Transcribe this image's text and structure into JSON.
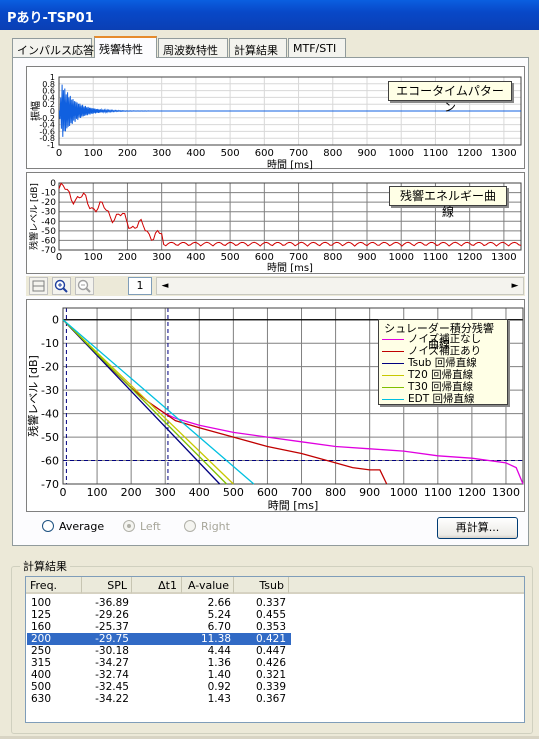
{
  "window": {
    "title": "Pあり-TSP01"
  },
  "tabs": [
    {
      "label": "インパルス応答",
      "active": false
    },
    {
      "label": "残響特性",
      "active": true
    },
    {
      "label": "周波数特性",
      "active": false
    },
    {
      "label": "計算結果",
      "active": false
    },
    {
      "label": "MTF/STI",
      "active": false
    }
  ],
  "echo_chart": {
    "label": "エコータイムパターン",
    "ylabel": "振幅",
    "xlabel": "時間 [ms]",
    "yticks": [
      "1",
      "0.8",
      "0.6",
      "0.4",
      "0.2",
      "0",
      "-0.2",
      "-0.4",
      "-0.6",
      "-0.8",
      "-1"
    ],
    "xticks": [
      "0",
      "100",
      "200",
      "300",
      "400",
      "500",
      "600",
      "700",
      "800",
      "900",
      "1000",
      "1100",
      "1200",
      "1300"
    ]
  },
  "energy_chart": {
    "label": "残響エネルギー曲線",
    "ylabel": "残響レベル [dB]",
    "xlabel": "時間 [ms]",
    "yticks": [
      "0",
      "-10",
      "-20",
      "-30",
      "-40",
      "-50",
      "-60",
      "-70"
    ],
    "xticks": [
      "0",
      "100",
      "200",
      "300",
      "400",
      "500",
      "600",
      "700",
      "800",
      "900",
      "1000",
      "1100",
      "1200",
      "1300"
    ]
  },
  "toolbar": {
    "page": "1",
    "left_arrow": "◄",
    "right_arrow": "►"
  },
  "chart_data": {
    "type": "line",
    "ylabel": "残響レベル [dB]",
    "xlabel": "時間 [ms]",
    "xlim": [
      0,
      1350
    ],
    "ylim": [
      -70,
      5
    ],
    "xticks": [
      0,
      100,
      200,
      300,
      400,
      500,
      600,
      700,
      800,
      900,
      1000,
      1100,
      1200,
      1300
    ],
    "yticks": [
      0,
      -10,
      -20,
      -30,
      -40,
      -50,
      -60,
      -70
    ],
    "grid": true,
    "legend_title": "シュレーダー積分残響曲線",
    "legend_position": "top-right",
    "reference_lines": {
      "hline_db": -60,
      "vline_ms": [
        10,
        308
      ]
    },
    "series": [
      {
        "name": "ノイズ補正なし",
        "color": "#E000E0",
        "x": [
          0,
          20,
          60,
          100,
          150,
          200,
          250,
          300,
          330,
          400,
          500,
          600,
          700,
          800,
          900,
          1000,
          1100,
          1200,
          1300,
          1330,
          1350
        ],
        "y": [
          0,
          -3,
          -9,
          -15,
          -22,
          -29,
          -35,
          -40,
          -42,
          -45,
          -48,
          -50,
          -52,
          -54,
          -55,
          -56,
          -58,
          -59,
          -61,
          -63,
          -70
        ]
      },
      {
        "name": "ノイズ補正あり",
        "color": "#C00000",
        "x": [
          0,
          20,
          60,
          100,
          150,
          200,
          250,
          300,
          330,
          400,
          500,
          600,
          700,
          800,
          850,
          900,
          930,
          950
        ],
        "y": [
          0,
          -3,
          -9,
          -15,
          -22,
          -29,
          -35,
          -40,
          -43,
          -46,
          -50,
          -54,
          -57,
          -61,
          -63,
          -64,
          -64,
          -70
        ]
      },
      {
        "name": "Tsub 回帰直線",
        "color": "#000080",
        "x": [
          0,
          460
        ],
        "y": [
          0,
          -70
        ]
      },
      {
        "name": "T20 回帰直線",
        "color": "#C8C800",
        "x": [
          0,
          500
        ],
        "y": [
          0,
          -70
        ]
      },
      {
        "name": "T30 回帰直線",
        "color": "#80C000",
        "x": [
          0,
          480
        ],
        "y": [
          0,
          -70
        ]
      },
      {
        "name": "EDT 回帰直線",
        "color": "#00C0E0",
        "x": [
          0,
          560
        ],
        "y": [
          0,
          -70
        ]
      }
    ]
  },
  "radios": [
    {
      "label": "Average",
      "selected": false,
      "enabled": true
    },
    {
      "label": "Left",
      "selected": true,
      "enabled": false
    },
    {
      "label": "Right",
      "selected": false,
      "enabled": false
    }
  ],
  "recalc_button": "再計算...",
  "results": {
    "group_label": "計算結果",
    "columns": [
      "Freq.",
      "SPL",
      "Δt1",
      "A-value",
      "Tsub"
    ],
    "rows": [
      [
        "100",
        "-36.89",
        "",
        "2.66",
        "0.337"
      ],
      [
        "125",
        "-29.26",
        "",
        "5.24",
        "0.455"
      ],
      [
        "160",
        "-25.37",
        "",
        "6.70",
        "0.353"
      ],
      [
        "200",
        "-29.75",
        "",
        "11.38",
        "0.421"
      ],
      [
        "250",
        "-30.18",
        "",
        "4.44",
        "0.447"
      ],
      [
        "315",
        "-34.27",
        "",
        "1.36",
        "0.426"
      ],
      [
        "400",
        "-32.74",
        "",
        "1.40",
        "0.321"
      ],
      [
        "500",
        "-32.45",
        "",
        "0.92",
        "0.339"
      ],
      [
        "630",
        "-34.22",
        "",
        "1.43",
        "0.367"
      ]
    ],
    "selected_row": 3
  }
}
